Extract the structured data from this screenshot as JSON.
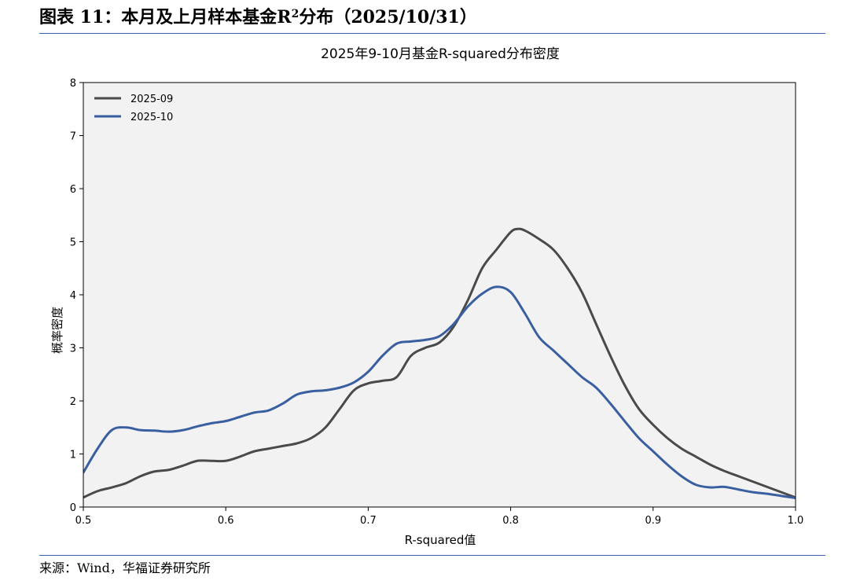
{
  "header": {
    "title_prefix": "图表 11：本月及上月样本基金R",
    "title_sup": "2",
    "title_suffix": "分布（2025/10/31）"
  },
  "footer": {
    "source": "来源：Wind，华福证券研究所"
  },
  "colors": {
    "rule": "#3b63b0",
    "plot_background": "#f2f2f2",
    "series_2025_09": "#4a4a4a",
    "series_2025_10": "#3a5fa0"
  },
  "chart_data": {
    "type": "line",
    "title": "2025年9-10月基金R-squared分布密度",
    "xlabel": "R-squared值",
    "ylabel": "概率密度",
    "xlim": [
      0.5,
      1.0
    ],
    "ylim": [
      0,
      8
    ],
    "xticks": [
      0.5,
      0.6,
      0.7,
      0.8,
      0.9,
      1.0
    ],
    "xtick_labels": [
      "0.5",
      "0.6",
      "0.7",
      "0.8",
      "0.9",
      "1.0"
    ],
    "yticks": [
      0,
      1,
      2,
      3,
      4,
      5,
      6,
      7,
      8
    ],
    "ytick_labels": [
      "0",
      "1",
      "2",
      "3",
      "4",
      "5",
      "6",
      "7",
      "8"
    ],
    "grid": false,
    "legend_position": "upper-left",
    "series": [
      {
        "name": "2025-09",
        "color": "#4a4a4a",
        "x": [
          0.5,
          0.51,
          0.52,
          0.53,
          0.54,
          0.55,
          0.56,
          0.57,
          0.58,
          0.59,
          0.6,
          0.61,
          0.62,
          0.63,
          0.64,
          0.65,
          0.66,
          0.67,
          0.68,
          0.69,
          0.7,
          0.71,
          0.72,
          0.73,
          0.74,
          0.75,
          0.76,
          0.77,
          0.78,
          0.79,
          0.8,
          0.805,
          0.81,
          0.82,
          0.83,
          0.84,
          0.85,
          0.86,
          0.87,
          0.88,
          0.89,
          0.9,
          0.91,
          0.92,
          0.93,
          0.94,
          0.95,
          0.96,
          0.97,
          0.98,
          0.99,
          1.0
        ],
        "values": [
          0.18,
          0.3,
          0.37,
          0.45,
          0.58,
          0.67,
          0.7,
          0.78,
          0.87,
          0.87,
          0.87,
          0.95,
          1.05,
          1.1,
          1.15,
          1.2,
          1.3,
          1.5,
          1.85,
          2.2,
          2.33,
          2.38,
          2.45,
          2.85,
          3.0,
          3.1,
          3.4,
          3.9,
          4.5,
          4.85,
          5.18,
          5.24,
          5.21,
          5.05,
          4.85,
          4.5,
          4.05,
          3.45,
          2.85,
          2.3,
          1.85,
          1.55,
          1.3,
          1.1,
          0.95,
          0.8,
          0.68,
          0.58,
          0.48,
          0.38,
          0.28,
          0.18
        ]
      },
      {
        "name": "2025-10",
        "color": "#3a5fa0",
        "x": [
          0.5,
          0.51,
          0.52,
          0.53,
          0.54,
          0.55,
          0.56,
          0.57,
          0.58,
          0.59,
          0.6,
          0.61,
          0.62,
          0.63,
          0.64,
          0.65,
          0.66,
          0.67,
          0.68,
          0.69,
          0.7,
          0.71,
          0.72,
          0.73,
          0.74,
          0.75,
          0.76,
          0.77,
          0.78,
          0.79,
          0.8,
          0.81,
          0.82,
          0.83,
          0.84,
          0.85,
          0.86,
          0.87,
          0.88,
          0.89,
          0.9,
          0.91,
          0.92,
          0.93,
          0.94,
          0.95,
          0.96,
          0.97,
          0.98,
          0.99,
          1.0
        ],
        "values": [
          0.65,
          1.1,
          1.45,
          1.5,
          1.45,
          1.44,
          1.42,
          1.45,
          1.52,
          1.58,
          1.62,
          1.7,
          1.78,
          1.82,
          1.95,
          2.12,
          2.18,
          2.2,
          2.25,
          2.35,
          2.55,
          2.85,
          3.08,
          3.12,
          3.15,
          3.22,
          3.45,
          3.78,
          4.02,
          4.15,
          4.05,
          3.65,
          3.2,
          2.95,
          2.7,
          2.45,
          2.25,
          1.95,
          1.62,
          1.3,
          1.05,
          0.8,
          0.58,
          0.42,
          0.37,
          0.38,
          0.33,
          0.28,
          0.25,
          0.21,
          0.17
        ]
      }
    ]
  }
}
